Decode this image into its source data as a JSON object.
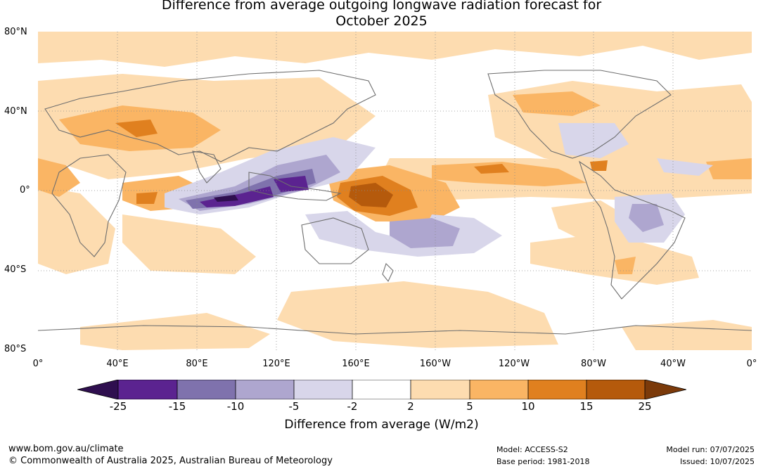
{
  "title": {
    "line1": "Difference from average outgoing longwave radiation forecast for",
    "line2": "October 2025"
  },
  "map": {
    "lat_labels": [
      "80°N",
      "40°N",
      "0°",
      "40°S",
      "80°S"
    ],
    "lon_labels": [
      "0°",
      "40°E",
      "80°E",
      "120°E",
      "160°E",
      "160°W",
      "120°W",
      "80°W",
      "40°W",
      "0°"
    ],
    "gridlines": "dotted"
  },
  "colorbar": {
    "ticks": [
      "-25",
      "-15",
      "-10",
      "-5",
      "-2",
      "2",
      "5",
      "10",
      "15",
      "25"
    ],
    "colors": [
      "#2f0f4f",
      "#5b2390",
      "#7f72ad",
      "#aea6cf",
      "#d8d6ea",
      "#ffffff",
      "#fddcb0",
      "#fab564",
      "#e0801f",
      "#b55a0c",
      "#7b3a0a"
    ],
    "label": "Difference from average (W/m2)"
  },
  "footer": {
    "url": "www.bom.gov.au/climate",
    "copyright": "© Commonwealth of Australia 2025, Australian Bureau of Meteorology",
    "model": "Model: ACCESS-S2",
    "base_period": "Base period: 1981-2018",
    "model_run": "Model run: 07/07/2025",
    "issued": "Issued: 10/07/2025"
  }
}
